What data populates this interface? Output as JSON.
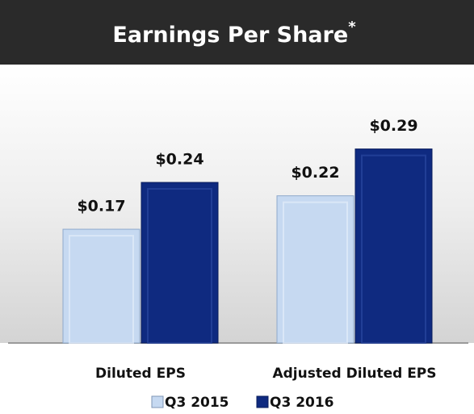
{
  "chart_data": {
    "type": "bar",
    "title": "Earnings Per Share",
    "title_mark": "*",
    "categories": [
      "Diluted EPS",
      "Adjusted Diluted EPS"
    ],
    "series": [
      {
        "name": "Q3 2015",
        "color": "#c6d9f1",
        "values": [
          0.17,
          0.22
        ],
        "value_labels": [
          "$0.17",
          "$0.22"
        ]
      },
      {
        "name": "Q3 2016",
        "color": "#0f2a80",
        "values": [
          0.24,
          0.29
        ],
        "value_labels": [
          "$0.24",
          "$0.29"
        ]
      }
    ]
  }
}
